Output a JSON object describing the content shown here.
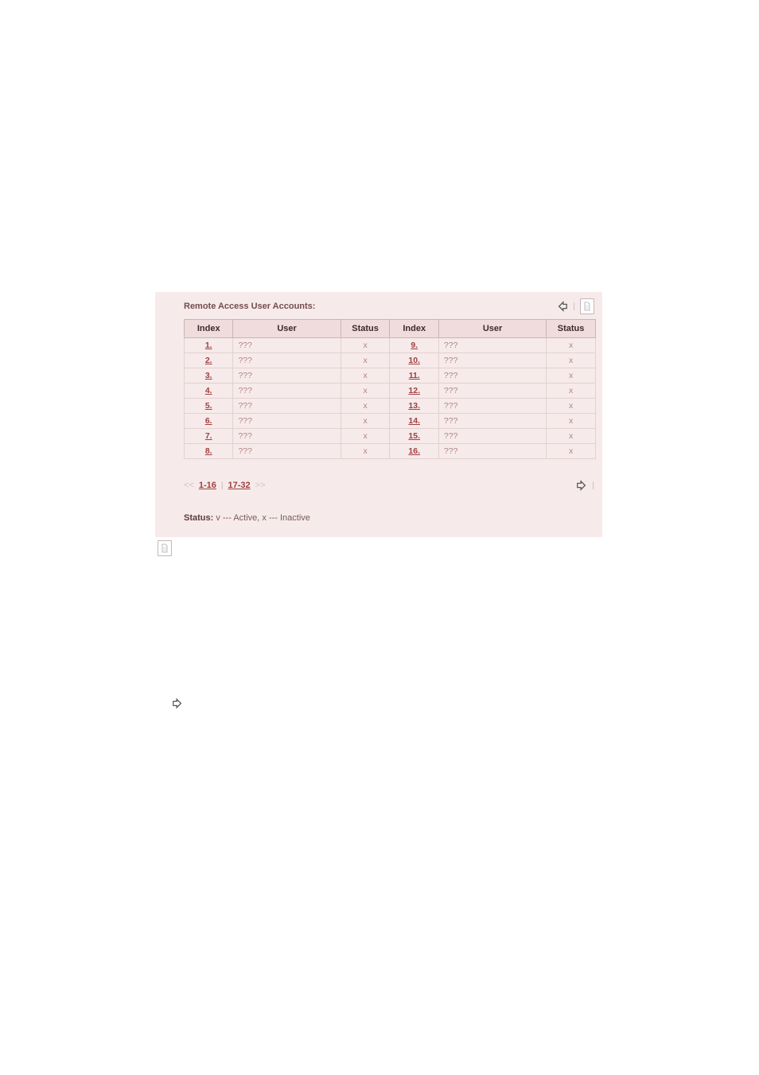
{
  "panel": {
    "title": "Remote Access User Accounts:",
    "columns": [
      "Index",
      "User",
      "Status",
      "Index",
      "User",
      "Status"
    ],
    "rows": [
      {
        "left": {
          "index": "1.",
          "user": "???",
          "status": "x"
        },
        "right": {
          "index": "9.",
          "user": "???",
          "status": "x"
        }
      },
      {
        "left": {
          "index": "2.",
          "user": "???",
          "status": "x"
        },
        "right": {
          "index": "10.",
          "user": "???",
          "status": "x"
        }
      },
      {
        "left": {
          "index": "3.",
          "user": "???",
          "status": "x"
        },
        "right": {
          "index": "11.",
          "user": "???",
          "status": "x"
        }
      },
      {
        "left": {
          "index": "4.",
          "user": "???",
          "status": "x"
        },
        "right": {
          "index": "12.",
          "user": "???",
          "status": "x"
        }
      },
      {
        "left": {
          "index": "5.",
          "user": "???",
          "status": "x"
        },
        "right": {
          "index": "13.",
          "user": "???",
          "status": "x"
        }
      },
      {
        "left": {
          "index": "6.",
          "user": "???",
          "status": "x"
        },
        "right": {
          "index": "14.",
          "user": "???",
          "status": "x"
        }
      },
      {
        "left": {
          "index": "7.",
          "user": "???",
          "status": "x"
        },
        "right": {
          "index": "15.",
          "user": "???",
          "status": "x"
        }
      },
      {
        "left": {
          "index": "8.",
          "user": "???",
          "status": "x"
        },
        "right": {
          "index": "16.",
          "user": "???",
          "status": "x"
        }
      }
    ],
    "pager": {
      "prev_marker": "<<",
      "page1": "1-16",
      "sep": "|",
      "page2": "17-32",
      "next_marker": ">>"
    },
    "legend_label": "Status:",
    "legend_text": " v --- Active, x --- Inactive"
  },
  "styling": {
    "panel_bg": "#f7eaea",
    "row_link_color": "#a04040",
    "muted_color": "#b08585",
    "border_color": "#c7b5b5"
  }
}
